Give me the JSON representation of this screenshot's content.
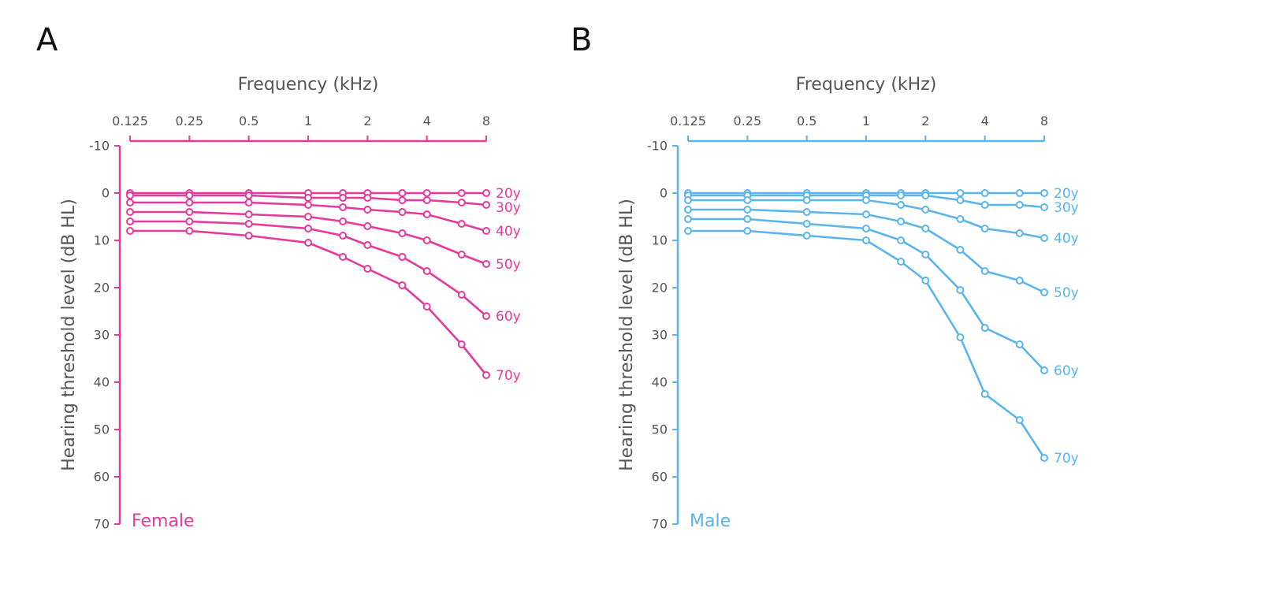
{
  "panels": [
    {
      "letter": "A"
    },
    {
      "letter": "B"
    }
  ],
  "chart_data": [
    {
      "type": "line",
      "panel": "A",
      "title": "",
      "annotation": "Female",
      "xlabel": "Frequency (kHz)",
      "ylabel": "Hearing threshold level (dB HL)",
      "x_scale": "log",
      "x_axis_position": "top",
      "y_inverted": true,
      "xlim": [
        0.125,
        8
      ],
      "ylim": [
        -10,
        70
      ],
      "grid": false,
      "legend": "direct labels at line ends",
      "color": "#e6399b",
      "x_ticks": [
        0.125,
        0.25,
        0.5,
        1,
        2,
        4,
        8
      ],
      "x_tick_labels": [
        "0.125",
        "0.25",
        "0.5",
        "1",
        "2",
        "4",
        "8"
      ],
      "y_ticks": [
        -10,
        0,
        10,
        20,
        30,
        40,
        50,
        60,
        70
      ],
      "y_tick_labels": [
        "-10",
        "0",
        "10",
        "20",
        "30",
        "40",
        "50",
        "60",
        "70"
      ],
      "x": [
        0.125,
        0.25,
        0.5,
        1,
        1.5,
        2,
        3,
        4,
        6,
        8
      ],
      "series": [
        {
          "name": "20y",
          "values": [
            0.0,
            0.0,
            0.0,
            0.0,
            0.0,
            0.0,
            0.0,
            0.0,
            0.0,
            0.0
          ]
        },
        {
          "name": "30y",
          "values": [
            0.5,
            0.5,
            0.5,
            1.0,
            1.0,
            1.0,
            1.5,
            1.5,
            2.0,
            2.5
          ]
        },
        {
          "name": "40y",
          "values": [
            2.0,
            2.0,
            2.0,
            2.5,
            3.0,
            3.5,
            4.0,
            4.5,
            6.5,
            8.0
          ]
        },
        {
          "name": "50y",
          "values": [
            4.0,
            4.0,
            4.5,
            5.0,
            6.0,
            7.0,
            8.5,
            10.0,
            13.0,
            15.0
          ]
        },
        {
          "name": "60y",
          "values": [
            6.0,
            6.0,
            6.5,
            7.5,
            9.0,
            11.0,
            13.5,
            16.5,
            21.5,
            26.0
          ]
        },
        {
          "name": "70y",
          "values": [
            8.0,
            8.0,
            9.0,
            10.5,
            13.5,
            16.0,
            19.5,
            24.0,
            32.0,
            38.5
          ]
        }
      ]
    },
    {
      "type": "line",
      "panel": "B",
      "title": "",
      "annotation": "Male",
      "xlabel": "Frequency (kHz)",
      "ylabel": "Hearing threshold level (dB HL)",
      "x_scale": "log",
      "x_axis_position": "top",
      "y_inverted": true,
      "xlim": [
        0.125,
        8
      ],
      "ylim": [
        -10,
        70
      ],
      "grid": false,
      "legend": "direct labels at line ends",
      "color": "#5ab4ee",
      "x_ticks": [
        0.125,
        0.25,
        0.5,
        1,
        2,
        4,
        8
      ],
      "x_tick_labels": [
        "0.125",
        "0.25",
        "0.5",
        "1",
        "2",
        "4",
        "8"
      ],
      "y_ticks": [
        -10,
        0,
        10,
        20,
        30,
        40,
        50,
        60,
        70
      ],
      "y_tick_labels": [
        "-10",
        "0",
        "10",
        "20",
        "30",
        "40",
        "50",
        "60",
        "70"
      ],
      "x": [
        0.125,
        0.25,
        0.5,
        1,
        1.5,
        2,
        3,
        4,
        6,
        8
      ],
      "series": [
        {
          "name": "20y",
          "values": [
            0.0,
            0.0,
            0.0,
            0.0,
            0.0,
            0.0,
            0.0,
            0.0,
            0.0,
            0.0
          ]
        },
        {
          "name": "30y",
          "values": [
            0.5,
            0.5,
            0.5,
            0.5,
            0.5,
            0.5,
            1.5,
            2.5,
            2.5,
            3.0
          ]
        },
        {
          "name": "40y",
          "values": [
            1.5,
            1.5,
            1.5,
            1.5,
            2.5,
            3.5,
            5.5,
            7.5,
            8.5,
            9.5
          ]
        },
        {
          "name": "50y",
          "values": [
            3.5,
            3.5,
            4.0,
            4.5,
            6.0,
            7.5,
            12.0,
            16.5,
            18.5,
            21.0
          ]
        },
        {
          "name": "60y",
          "values": [
            5.5,
            5.5,
            6.5,
            7.5,
            10.0,
            13.0,
            20.5,
            28.5,
            32.0,
            37.5
          ]
        },
        {
          "name": "70y",
          "values": [
            8.0,
            8.0,
            9.0,
            10.0,
            14.5,
            18.5,
            30.5,
            42.5,
            48.0,
            56.0
          ]
        }
      ]
    }
  ]
}
